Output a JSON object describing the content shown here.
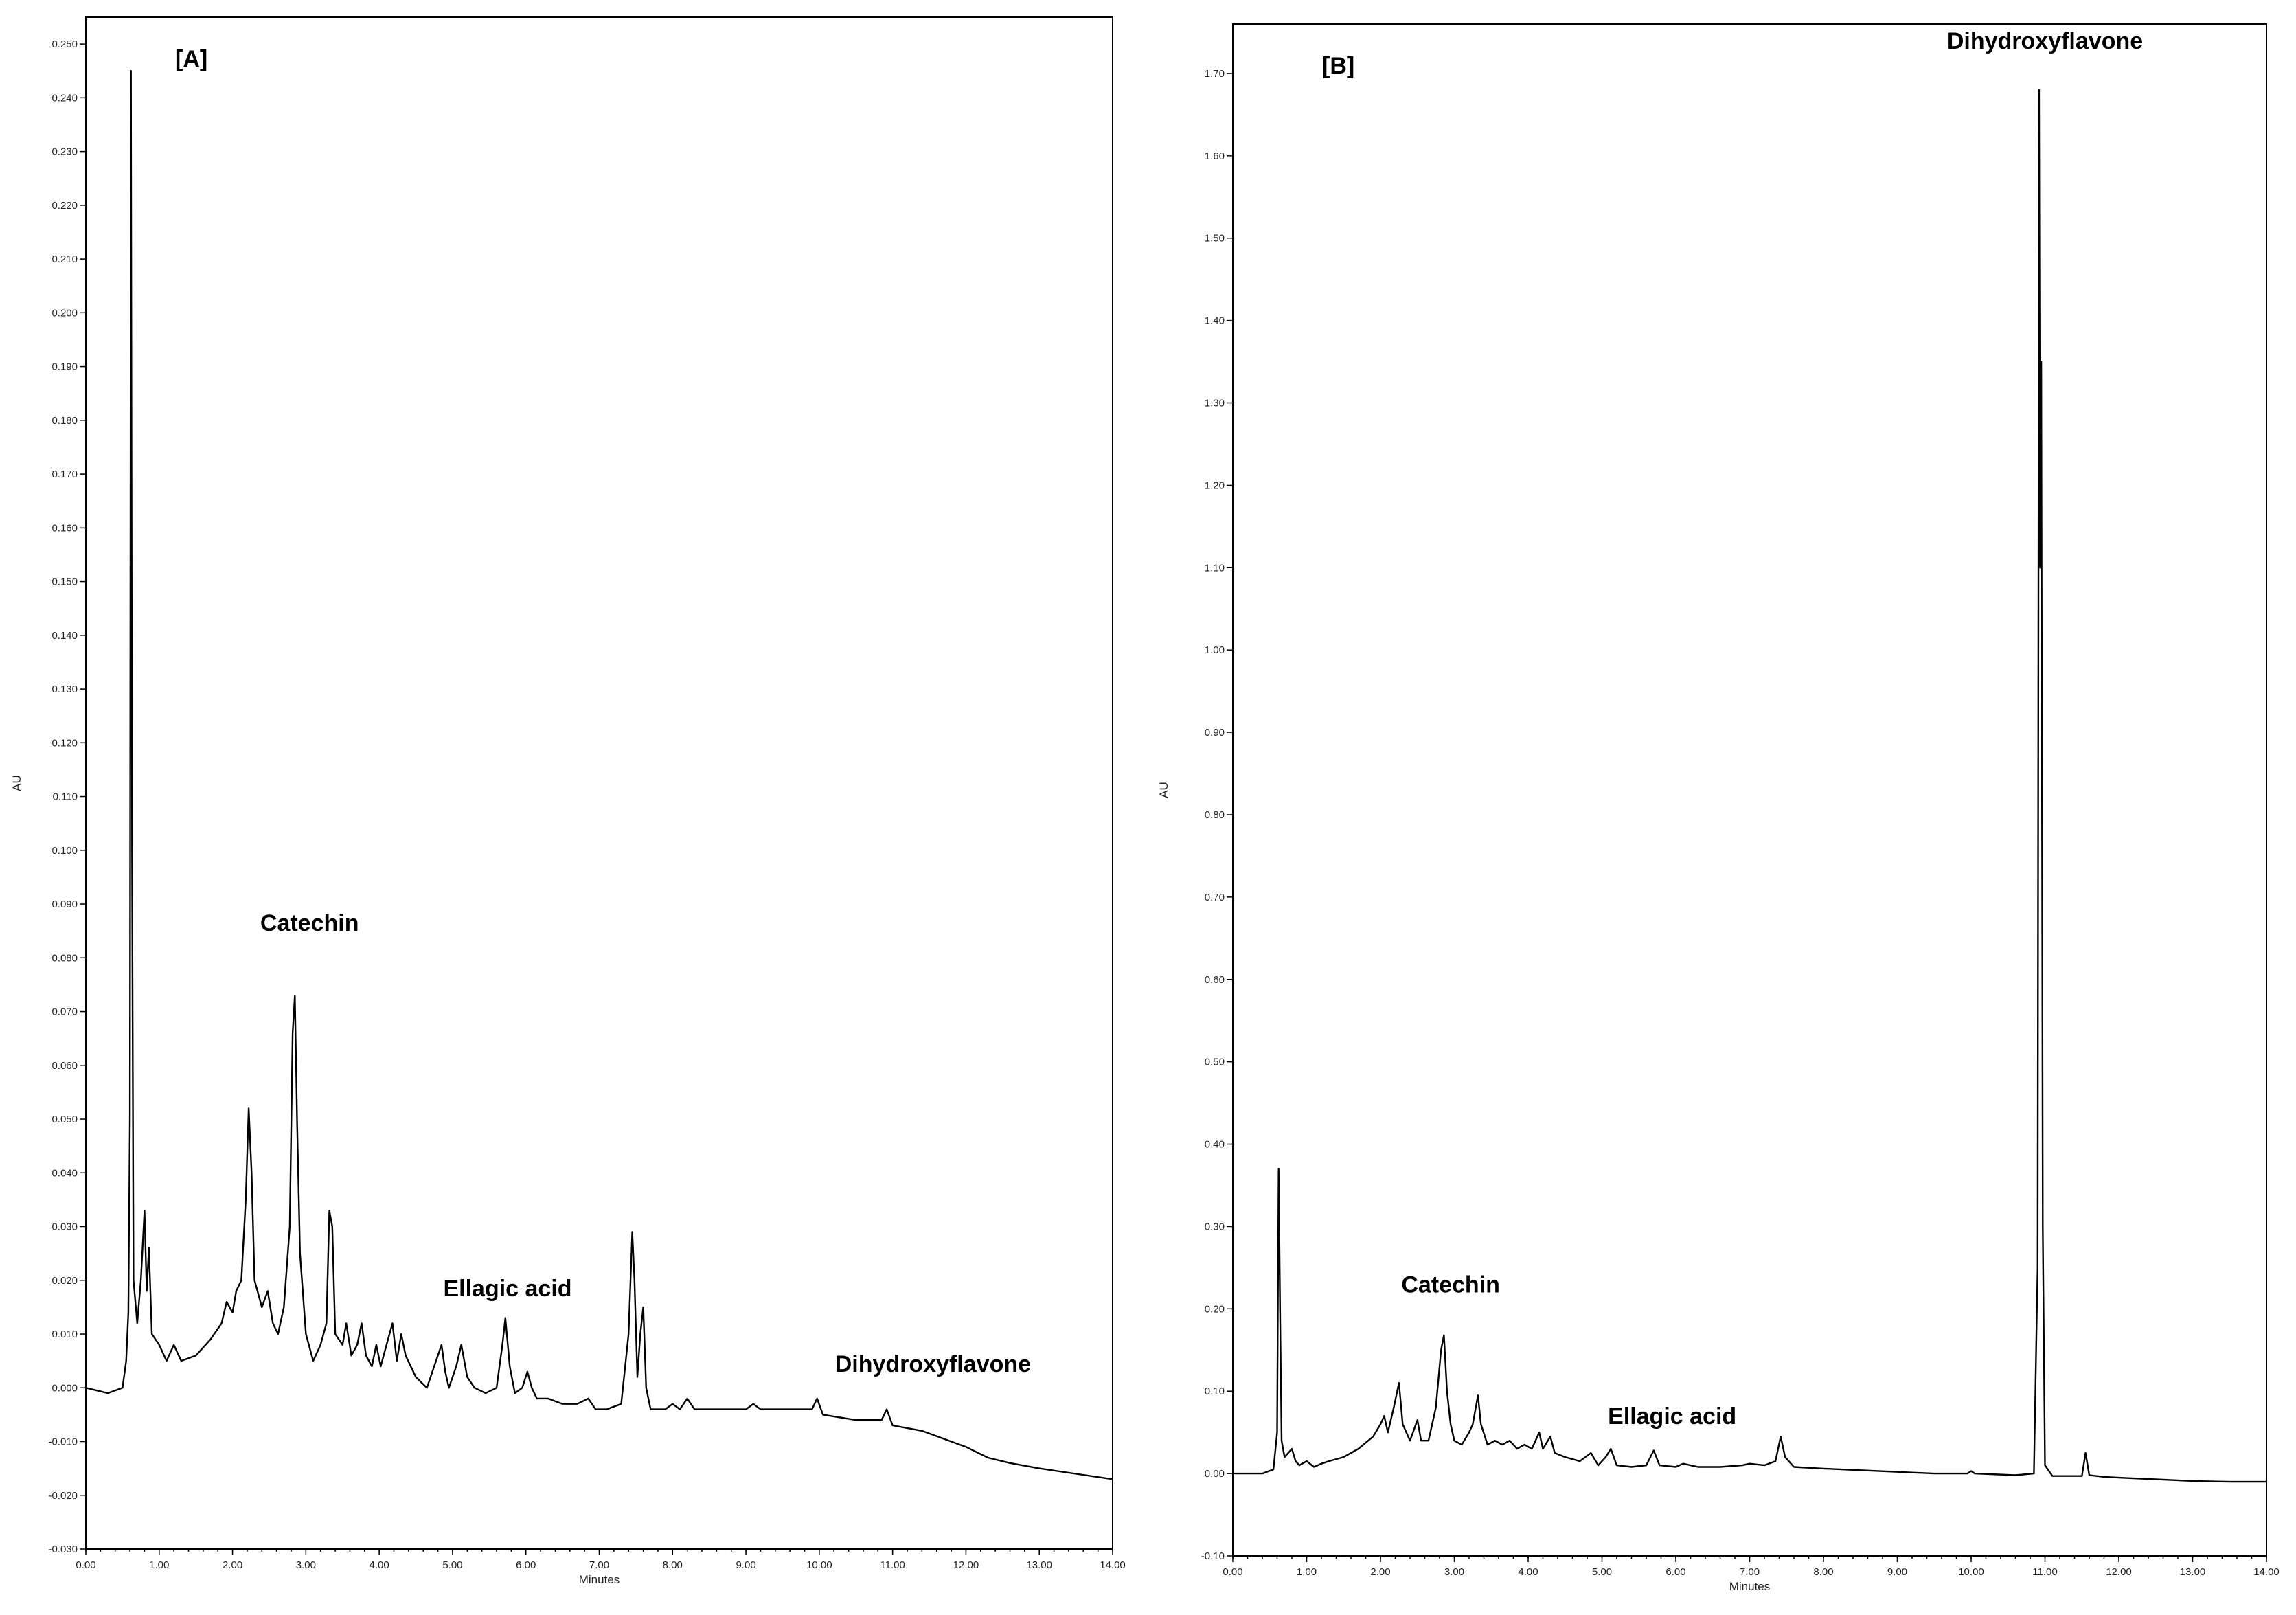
{
  "chart_data": [
    {
      "type": "line",
      "panel_label": "[A]",
      "xlabel": "Minutes",
      "ylabel": "AU",
      "xlim": [
        0,
        14
      ],
      "ylim": [
        -0.03,
        0.255
      ],
      "x_ticks": [
        "0.00",
        "1.00",
        "2.00",
        "3.00",
        "4.00",
        "5.00",
        "6.00",
        "7.00",
        "8.00",
        "9.00",
        "10.00",
        "11.00",
        "12.00",
        "13.00",
        "14.00"
      ],
      "y_ticks": [
        "-0.030",
        "-0.020",
        "-0.010",
        "0.000",
        "0.010",
        "0.020",
        "0.030",
        "0.040",
        "0.050",
        "0.060",
        "0.070",
        "0.080",
        "0.090",
        "0.100",
        "0.110",
        "0.120",
        "0.130",
        "0.140",
        "0.150",
        "0.160",
        "0.170",
        "0.180",
        "0.190",
        "0.200",
        "0.210",
        "0.220",
        "0.230",
        "0.240",
        "0.250"
      ],
      "grid": false,
      "series": [
        {
          "color": "#000000",
          "points": [
            [
              0.0,
              0.0
            ],
            [
              0.3,
              -0.001
            ],
            [
              0.5,
              0.0
            ],
            [
              0.55,
              0.005
            ],
            [
              0.58,
              0.014
            ],
            [
              0.6,
              0.05
            ],
            [
              0.615,
              0.245
            ],
            [
              0.63,
              0.1
            ],
            [
              0.65,
              0.02
            ],
            [
              0.7,
              0.012
            ],
            [
              0.75,
              0.02
            ],
            [
              0.8,
              0.033
            ],
            [
              0.83,
              0.018
            ],
            [
              0.86,
              0.026
            ],
            [
              0.9,
              0.01
            ],
            [
              1.0,
              0.008
            ],
            [
              1.1,
              0.005
            ],
            [
              1.2,
              0.008
            ],
            [
              1.3,
              0.005
            ],
            [
              1.5,
              0.006
            ],
            [
              1.7,
              0.009
            ],
            [
              1.85,
              0.012
            ],
            [
              1.92,
              0.016
            ],
            [
              2.0,
              0.014
            ],
            [
              2.05,
              0.018
            ],
            [
              2.12,
              0.02
            ],
            [
              2.18,
              0.035
            ],
            [
              2.22,
              0.052
            ],
            [
              2.26,
              0.04
            ],
            [
              2.3,
              0.02
            ],
            [
              2.4,
              0.015
            ],
            [
              2.48,
              0.018
            ],
            [
              2.55,
              0.012
            ],
            [
              2.62,
              0.01
            ],
            [
              2.7,
              0.015
            ],
            [
              2.78,
              0.03
            ],
            [
              2.82,
              0.066
            ],
            [
              2.85,
              0.073
            ],
            [
              2.88,
              0.05
            ],
            [
              2.92,
              0.025
            ],
            [
              3.0,
              0.01
            ],
            [
              3.1,
              0.005
            ],
            [
              3.2,
              0.008
            ],
            [
              3.28,
              0.012
            ],
            [
              3.32,
              0.033
            ],
            [
              3.36,
              0.03
            ],
            [
              3.4,
              0.01
            ],
            [
              3.5,
              0.008
            ],
            [
              3.55,
              0.012
            ],
            [
              3.62,
              0.006
            ],
            [
              3.7,
              0.008
            ],
            [
              3.76,
              0.012
            ],
            [
              3.82,
              0.006
            ],
            [
              3.9,
              0.004
            ],
            [
              3.96,
              0.008
            ],
            [
              4.02,
              0.004
            ],
            [
              4.1,
              0.008
            ],
            [
              4.18,
              0.012
            ],
            [
              4.24,
              0.005
            ],
            [
              4.3,
              0.01
            ],
            [
              4.36,
              0.006
            ],
            [
              4.5,
              0.002
            ],
            [
              4.65,
              0.0
            ],
            [
              4.75,
              0.004
            ],
            [
              4.85,
              0.008
            ],
            [
              4.9,
              0.003
            ],
            [
              4.95,
              0.0
            ],
            [
              5.05,
              0.004
            ],
            [
              5.12,
              0.008
            ],
            [
              5.2,
              0.002
            ],
            [
              5.3,
              0.0
            ],
            [
              5.45,
              -0.001
            ],
            [
              5.6,
              0.0
            ],
            [
              5.68,
              0.008
            ],
            [
              5.72,
              0.013
            ],
            [
              5.78,
              0.004
            ],
            [
              5.85,
              -0.001
            ],
            [
              5.95,
              0.0
            ],
            [
              6.02,
              0.003
            ],
            [
              6.08,
              0.0
            ],
            [
              6.15,
              -0.002
            ],
            [
              6.3,
              -0.002
            ],
            [
              6.5,
              -0.003
            ],
            [
              6.7,
              -0.003
            ],
            [
              6.85,
              -0.002
            ],
            [
              6.95,
              -0.004
            ],
            [
              7.1,
              -0.004
            ],
            [
              7.3,
              -0.003
            ],
            [
              7.4,
              0.01
            ],
            [
              7.45,
              0.029
            ],
            [
              7.48,
              0.02
            ],
            [
              7.52,
              0.002
            ],
            [
              7.56,
              0.01
            ],
            [
              7.6,
              0.015
            ],
            [
              7.64,
              0.0
            ],
            [
              7.7,
              -0.004
            ],
            [
              7.9,
              -0.004
            ],
            [
              8.0,
              -0.003
            ],
            [
              8.1,
              -0.004
            ],
            [
              8.2,
              -0.002
            ],
            [
              8.3,
              -0.004
            ],
            [
              8.6,
              -0.004
            ],
            [
              9.0,
              -0.004
            ],
            [
              9.1,
              -0.003
            ],
            [
              9.2,
              -0.004
            ],
            [
              9.5,
              -0.004
            ],
            [
              9.9,
              -0.004
            ],
            [
              9.97,
              -0.002
            ],
            [
              10.05,
              -0.005
            ],
            [
              10.5,
              -0.006
            ],
            [
              10.85,
              -0.006
            ],
            [
              10.92,
              -0.004
            ],
            [
              11.0,
              -0.007
            ],
            [
              11.4,
              -0.008
            ],
            [
              11.8,
              -0.01
            ],
            [
              12.0,
              -0.011
            ],
            [
              12.3,
              -0.013
            ],
            [
              12.6,
              -0.014
            ],
            [
              13.0,
              -0.015
            ],
            [
              13.5,
              -0.016
            ],
            [
              14.0,
              -0.017
            ]
          ]
        }
      ],
      "annotations": [
        {
          "text": "Catechin",
          "x": 3.05,
          "y": 0.085
        },
        {
          "text": "Ellagic acid",
          "x": 5.75,
          "y": 0.017
        },
        {
          "text": "Dihydroxyflavone",
          "x": 11.55,
          "y": 0.003
        }
      ]
    },
    {
      "type": "line",
      "panel_label": "[B]",
      "xlabel": "Minutes",
      "ylabel": "AU",
      "xlim": [
        0,
        14
      ],
      "ylim": [
        -0.1,
        1.76
      ],
      "x_ticks": [
        "0.00",
        "1.00",
        "2.00",
        "3.00",
        "4.00",
        "5.00",
        "6.00",
        "7.00",
        "8.00",
        "9.00",
        "10.00",
        "11.00",
        "12.00",
        "13.00",
        "14.00"
      ],
      "y_ticks": [
        "-0.10",
        "0.00",
        "0.10",
        "0.20",
        "0.30",
        "0.40",
        "0.50",
        "0.60",
        "0.70",
        "0.80",
        "0.90",
        "1.00",
        "1.10",
        "1.20",
        "1.30",
        "1.40",
        "1.50",
        "1.60",
        "1.70"
      ],
      "grid": false,
      "series": [
        {
          "color": "#000000",
          "points": [
            [
              0.0,
              0.0
            ],
            [
              0.4,
              0.0
            ],
            [
              0.55,
              0.005
            ],
            [
              0.6,
              0.05
            ],
            [
              0.62,
              0.37
            ],
            [
              0.64,
              0.2
            ],
            [
              0.66,
              0.04
            ],
            [
              0.7,
              0.02
            ],
            [
              0.8,
              0.03
            ],
            [
              0.85,
              0.015
            ],
            [
              0.9,
              0.01
            ],
            [
              1.0,
              0.015
            ],
            [
              1.1,
              0.008
            ],
            [
              1.2,
              0.012
            ],
            [
              1.3,
              0.015
            ],
            [
              1.5,
              0.02
            ],
            [
              1.7,
              0.03
            ],
            [
              1.9,
              0.045
            ],
            [
              2.0,
              0.06
            ],
            [
              2.05,
              0.07
            ],
            [
              2.1,
              0.05
            ],
            [
              2.18,
              0.08
            ],
            [
              2.25,
              0.11
            ],
            [
              2.3,
              0.06
            ],
            [
              2.4,
              0.04
            ],
            [
              2.5,
              0.065
            ],
            [
              2.55,
              0.04
            ],
            [
              2.65,
              0.04
            ],
            [
              2.75,
              0.08
            ],
            [
              2.82,
              0.15
            ],
            [
              2.86,
              0.168
            ],
            [
              2.9,
              0.1
            ],
            [
              2.95,
              0.06
            ],
            [
              3.0,
              0.04
            ],
            [
              3.1,
              0.035
            ],
            [
              3.2,
              0.05
            ],
            [
              3.25,
              0.06
            ],
            [
              3.32,
              0.095
            ],
            [
              3.36,
              0.06
            ],
            [
              3.45,
              0.035
            ],
            [
              3.55,
              0.04
            ],
            [
              3.65,
              0.035
            ],
            [
              3.75,
              0.04
            ],
            [
              3.85,
              0.03
            ],
            [
              3.95,
              0.035
            ],
            [
              4.05,
              0.03
            ],
            [
              4.15,
              0.05
            ],
            [
              4.2,
              0.03
            ],
            [
              4.3,
              0.045
            ],
            [
              4.36,
              0.025
            ],
            [
              4.5,
              0.02
            ],
            [
              4.7,
              0.015
            ],
            [
              4.85,
              0.025
            ],
            [
              4.95,
              0.01
            ],
            [
              5.05,
              0.02
            ],
            [
              5.12,
              0.03
            ],
            [
              5.2,
              0.01
            ],
            [
              5.4,
              0.008
            ],
            [
              5.6,
              0.01
            ],
            [
              5.7,
              0.028
            ],
            [
              5.78,
              0.01
            ],
            [
              6.0,
              0.008
            ],
            [
              6.1,
              0.012
            ],
            [
              6.3,
              0.008
            ],
            [
              6.6,
              0.008
            ],
            [
              6.9,
              0.01
            ],
            [
              7.0,
              0.012
            ],
            [
              7.2,
              0.01
            ],
            [
              7.35,
              0.015
            ],
            [
              7.42,
              0.045
            ],
            [
              7.48,
              0.02
            ],
            [
              7.6,
              0.008
            ],
            [
              8.0,
              0.006
            ],
            [
              8.5,
              0.004
            ],
            [
              9.0,
              0.002
            ],
            [
              9.5,
              0.0
            ],
            [
              9.95,
              0.0
            ],
            [
              10.0,
              0.003
            ],
            [
              10.05,
              0.0
            ],
            [
              10.6,
              -0.002
            ],
            [
              10.85,
              0.0
            ],
            [
              10.9,
              0.25
            ],
            [
              10.92,
              1.68
            ],
            [
              10.935,
              1.1
            ],
            [
              10.95,
              1.35
            ],
            [
              10.97,
              0.3
            ],
            [
              11.0,
              0.01
            ],
            [
              11.1,
              -0.003
            ],
            [
              11.5,
              -0.003
            ],
            [
              11.55,
              0.025
            ],
            [
              11.6,
              -0.002
            ],
            [
              11.8,
              -0.004
            ],
            [
              12.0,
              -0.005
            ],
            [
              12.5,
              -0.007
            ],
            [
              13.0,
              -0.009
            ],
            [
              13.5,
              -0.01
            ],
            [
              14.0,
              -0.01
            ]
          ]
        }
      ],
      "annotations": [
        {
          "text": "Catechin",
          "x": 2.95,
          "y": 0.22
        },
        {
          "text": "Ellagic acid",
          "x": 5.95,
          "y": 0.06
        },
        {
          "text": "Dihydroxyflavone",
          "x": 11.0,
          "y": 1.73
        }
      ]
    }
  ]
}
